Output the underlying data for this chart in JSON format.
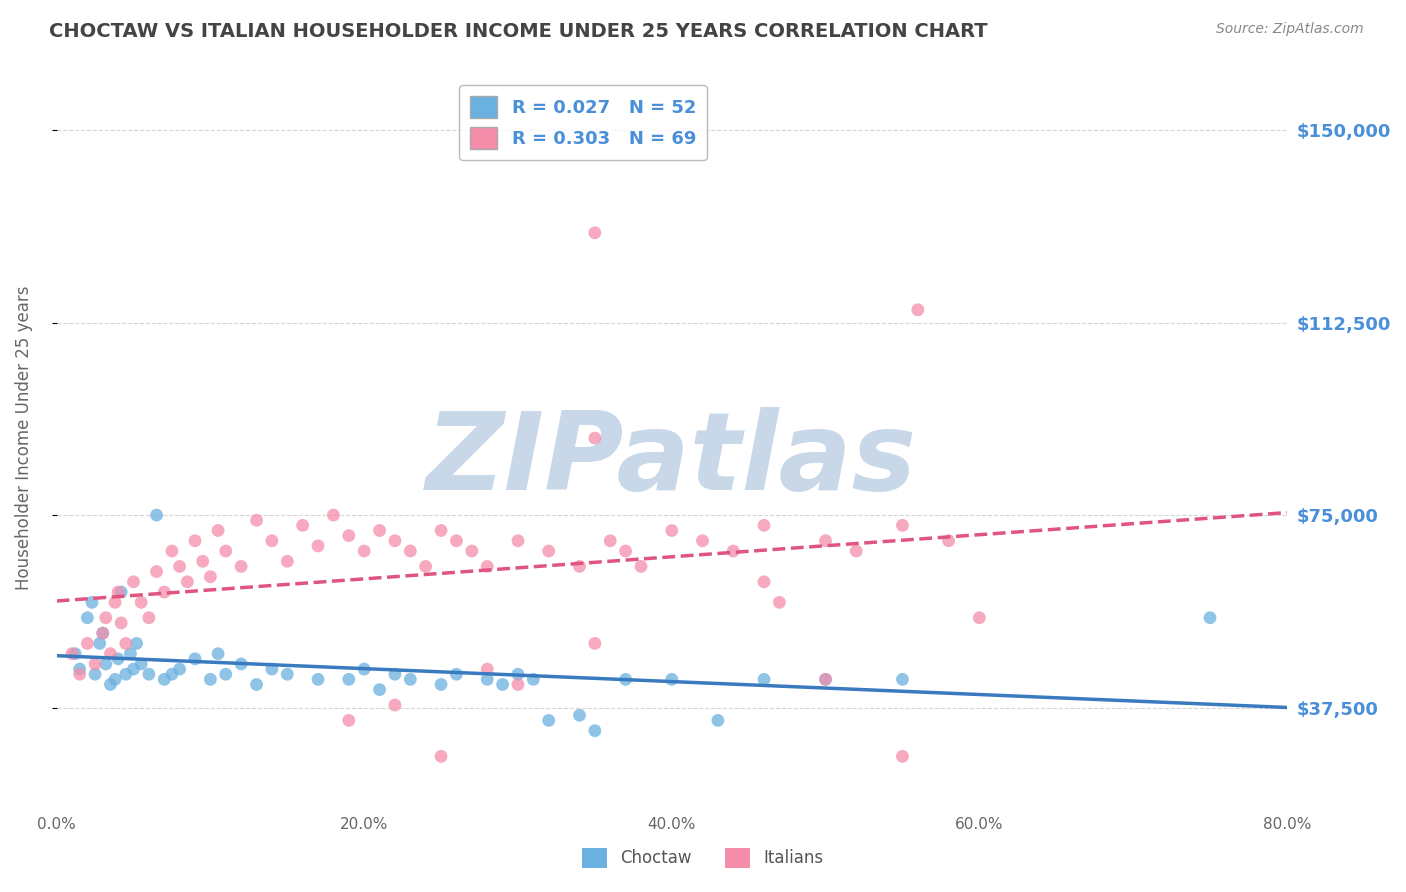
{
  "title": "CHOCTAW VS ITALIAN HOUSEHOLDER INCOME UNDER 25 YEARS CORRELATION CHART",
  "source": "Source: ZipAtlas.com",
  "ylabel": "Householder Income Under 25 years",
  "xlabel_ticks": [
    "0.0%",
    "20.0%",
    "40.0%",
    "60.0%",
    "80.0%"
  ],
  "xlabel_vals": [
    0.0,
    20.0,
    40.0,
    60.0,
    80.0
  ],
  "ylim": [
    18000,
    162000
  ],
  "xlim": [
    0.0,
    80.0
  ],
  "yticks": [
    37500,
    75000,
    112500,
    150000
  ],
  "ytick_labels": [
    "$37,500",
    "$75,000",
    "$112,500",
    "$150,000"
  ],
  "choctaw_R": 0.027,
  "choctaw_N": 52,
  "italian_R": 0.303,
  "italian_N": 69,
  "choctaw_color": "#6ab0e0",
  "italian_color": "#f48caa",
  "choctaw_line_color": "#3a7abf",
  "italian_line_color": "#e05580",
  "background_color": "#ffffff",
  "grid_color": "#cccccc",
  "title_color": "#444444",
  "watermark_text": "ZIPatlas",
  "watermark_color": "#c8d8e8",
  "choctaw_x": [
    1.2,
    1.5,
    2.0,
    2.3,
    2.5,
    2.8,
    3.0,
    3.2,
    3.5,
    3.8,
    4.0,
    4.2,
    4.5,
    4.8,
    5.0,
    5.2,
    5.5,
    6.0,
    6.5,
    7.0,
    7.5,
    8.0,
    9.0,
    10.0,
    10.5,
    11.0,
    12.0,
    13.0,
    14.0,
    15.0,
    17.0,
    19.0,
    20.0,
    21.0,
    22.0,
    23.0,
    25.0,
    26.0,
    28.0,
    29.0,
    30.0,
    31.0,
    32.0,
    34.0,
    35.0,
    37.0,
    40.0,
    43.0,
    46.0,
    50.0,
    55.0,
    75.0
  ],
  "choctaw_y": [
    48000,
    45000,
    55000,
    58000,
    44000,
    50000,
    52000,
    46000,
    42000,
    43000,
    47000,
    60000,
    44000,
    48000,
    45000,
    50000,
    46000,
    44000,
    75000,
    43000,
    44000,
    45000,
    47000,
    43000,
    48000,
    44000,
    46000,
    42000,
    45000,
    44000,
    43000,
    43000,
    45000,
    41000,
    44000,
    43000,
    42000,
    44000,
    43000,
    42000,
    44000,
    43000,
    35000,
    36000,
    33000,
    43000,
    43000,
    35000,
    43000,
    43000,
    43000,
    55000
  ],
  "italian_x": [
    1.0,
    1.5,
    2.0,
    2.5,
    3.0,
    3.2,
    3.5,
    3.8,
    4.0,
    4.2,
    4.5,
    5.0,
    5.5,
    6.0,
    6.5,
    7.0,
    7.5,
    8.0,
    8.5,
    9.0,
    9.5,
    10.0,
    10.5,
    11.0,
    12.0,
    13.0,
    14.0,
    15.0,
    16.0,
    17.0,
    18.0,
    19.0,
    20.0,
    21.0,
    22.0,
    23.0,
    24.0,
    25.0,
    26.0,
    27.0,
    28.0,
    30.0,
    32.0,
    34.0,
    36.0,
    37.0,
    38.0,
    40.0,
    42.0,
    44.0,
    46.0,
    50.0,
    52.0,
    55.0,
    58.0,
    35.0,
    56.0,
    35.0,
    30.0,
    25.0,
    28.0,
    22.0,
    19.0,
    50.0,
    55.0,
    60.0,
    46.0,
    47.0,
    35.0
  ],
  "italian_y": [
    48000,
    44000,
    50000,
    46000,
    52000,
    55000,
    48000,
    58000,
    60000,
    54000,
    50000,
    62000,
    58000,
    55000,
    64000,
    60000,
    68000,
    65000,
    62000,
    70000,
    66000,
    63000,
    72000,
    68000,
    65000,
    74000,
    70000,
    66000,
    73000,
    69000,
    75000,
    71000,
    68000,
    72000,
    70000,
    68000,
    65000,
    72000,
    70000,
    68000,
    65000,
    70000,
    68000,
    65000,
    70000,
    68000,
    65000,
    72000,
    70000,
    68000,
    73000,
    70000,
    68000,
    73000,
    70000,
    90000,
    115000,
    130000,
    42000,
    28000,
    45000,
    38000,
    35000,
    43000,
    28000,
    55000,
    62000,
    58000,
    50000
  ]
}
